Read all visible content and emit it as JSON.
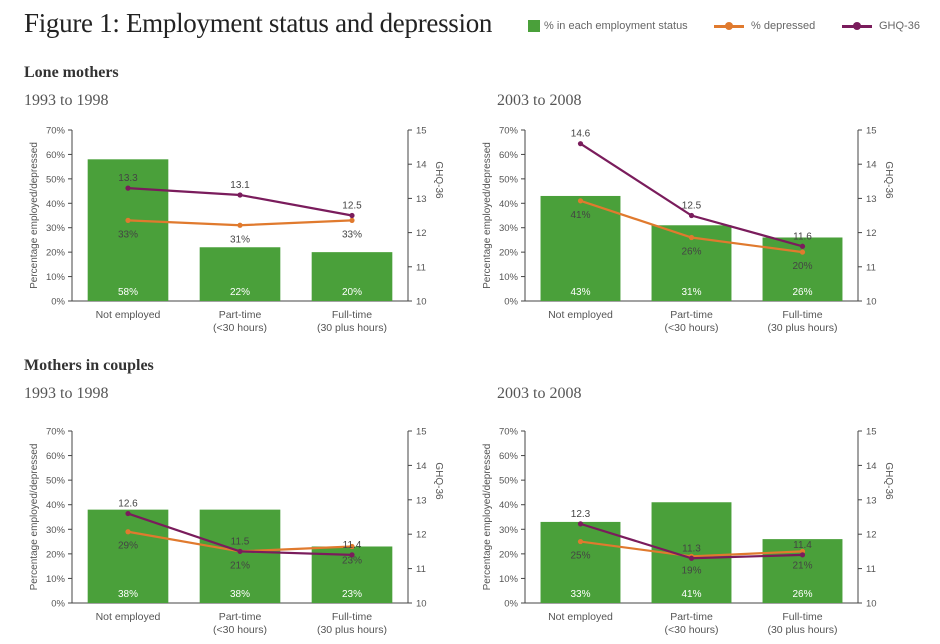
{
  "title": "Figure 1: Employment status and depression",
  "legend": {
    "bar_label": "% in each employment status",
    "depressed_label": "% depressed",
    "ghq_label": "GHQ-36"
  },
  "colors": {
    "bar": "#4aa03a",
    "depressed": "#e07a2e",
    "ghq": "#7a1c5c"
  },
  "sections": [
    {
      "title": "Lone mothers"
    },
    {
      "title": "Mothers in couples"
    }
  ],
  "chart_data": [
    {
      "type": "bar",
      "period": "1993 to 1998",
      "categories": [
        [
          "Not employed"
        ],
        [
          "Part-time",
          "(<30 hours)"
        ],
        [
          "Full-time",
          "(30 plus hours)"
        ]
      ],
      "ylabel": "Percentage employed/depressed",
      "y2label": "GHQ-36",
      "ylim": [
        0,
        70
      ],
      "y2lim": [
        10,
        15
      ],
      "yticks": [
        "0%",
        "10%",
        "20%",
        "30%",
        "40%",
        "50%",
        "60%",
        "70%"
      ],
      "y2ticks": [
        "10",
        "11",
        "12",
        "13",
        "14",
        "15"
      ],
      "series": [
        {
          "name": "% in each employment status",
          "kind": "bar",
          "values": [
            58,
            22,
            20
          ],
          "labels": [
            "58%",
            "22%",
            "20%"
          ]
        },
        {
          "name": "% depressed",
          "kind": "line",
          "axis": "left",
          "values": [
            33,
            31,
            33
          ],
          "labels": [
            "33%",
            "31%",
            "33%"
          ]
        },
        {
          "name": "GHQ-36",
          "kind": "line",
          "axis": "right",
          "values": [
            13.3,
            13.1,
            12.5
          ],
          "labels": [
            "13.3",
            "13.1",
            "12.5"
          ]
        }
      ]
    },
    {
      "type": "bar",
      "period": "2003 to 2008",
      "categories": [
        [
          "Not employed"
        ],
        [
          "Part-time",
          "(<30 hours)"
        ],
        [
          "Full-time",
          "(30 plus hours)"
        ]
      ],
      "ylabel": "Percentage employed/depressed",
      "y2label": "GHQ-36",
      "ylim": [
        0,
        70
      ],
      "y2lim": [
        10,
        15
      ],
      "yticks": [
        "0%",
        "10%",
        "20%",
        "30%",
        "40%",
        "50%",
        "60%",
        "70%"
      ],
      "y2ticks": [
        "10",
        "11",
        "12",
        "13",
        "14",
        "15"
      ],
      "series": [
        {
          "name": "% in each employment status",
          "kind": "bar",
          "values": [
            43,
            31,
            26
          ],
          "labels": [
            "43%",
            "31%",
            "26%"
          ]
        },
        {
          "name": "% depressed",
          "kind": "line",
          "axis": "left",
          "values": [
            41,
            26,
            20
          ],
          "labels": [
            "41%",
            "26%",
            "20%"
          ]
        },
        {
          "name": "GHQ-36",
          "kind": "line",
          "axis": "right",
          "values": [
            14.6,
            12.5,
            11.6
          ],
          "labels": [
            "14.6",
            "12.5",
            "11.6"
          ]
        }
      ]
    },
    {
      "type": "bar",
      "period": "1993 to 1998",
      "categories": [
        [
          "Not employed"
        ],
        [
          "Part-time",
          "(<30 hours)"
        ],
        [
          "Full-time",
          "(30 plus hours)"
        ]
      ],
      "ylabel": "Percentage employed/depressed",
      "y2label": "GHQ-36",
      "ylim": [
        0,
        70
      ],
      "y2lim": [
        10,
        15
      ],
      "yticks": [
        "0%",
        "10%",
        "20%",
        "30%",
        "40%",
        "50%",
        "60%",
        "70%"
      ],
      "y2ticks": [
        "10",
        "11",
        "12",
        "13",
        "14",
        "15"
      ],
      "series": [
        {
          "name": "% in each employment status",
          "kind": "bar",
          "values": [
            38,
            38,
            23
          ],
          "labels": [
            "38%",
            "38%",
            "23%"
          ]
        },
        {
          "name": "% depressed",
          "kind": "line",
          "axis": "left",
          "values": [
            29,
            21,
            23
          ],
          "labels": [
            "29%",
            "21%",
            "23%"
          ]
        },
        {
          "name": "GHQ-36",
          "kind": "line",
          "axis": "right",
          "values": [
            12.6,
            11.5,
            11.4
          ],
          "labels": [
            "12.6",
            "11.5",
            "11.4"
          ]
        }
      ]
    },
    {
      "type": "bar",
      "period": "2003 to 2008",
      "categories": [
        [
          "Not employed"
        ],
        [
          "Part-time",
          "(<30 hours)"
        ],
        [
          "Full-time",
          "(30 plus hours)"
        ]
      ],
      "ylabel": "Percentage employed/depressed",
      "y2label": "GHQ-36",
      "ylim": [
        0,
        70
      ],
      "y2lim": [
        10,
        15
      ],
      "yticks": [
        "0%",
        "10%",
        "20%",
        "30%",
        "40%",
        "50%",
        "60%",
        "70%"
      ],
      "y2ticks": [
        "10",
        "11",
        "12",
        "13",
        "14",
        "15"
      ],
      "series": [
        {
          "name": "% in each employment status",
          "kind": "bar",
          "values": [
            33,
            41,
            26
          ],
          "labels": [
            "33%",
            "41%",
            "26%"
          ]
        },
        {
          "name": "% depressed",
          "kind": "line",
          "axis": "left",
          "values": [
            25,
            19,
            21
          ],
          "labels": [
            "25%",
            "19%",
            "21%"
          ]
        },
        {
          "name": "GHQ-36",
          "kind": "line",
          "axis": "right",
          "values": [
            12.3,
            11.3,
            11.4
          ],
          "labels": [
            "12.3",
            "11.3",
            "11.4"
          ]
        }
      ]
    }
  ]
}
